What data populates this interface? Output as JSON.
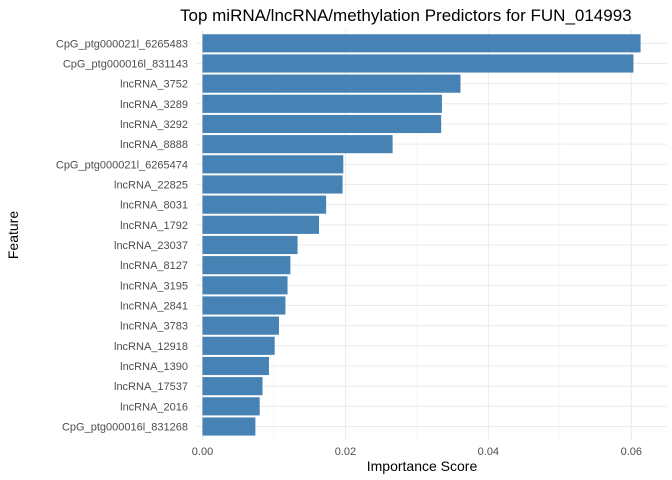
{
  "chart_data": {
    "type": "bar",
    "orientation": "horizontal",
    "title": "Top miRNA/lncRNA/methylation Predictors for FUN_014993",
    "xlabel": "Importance Score",
    "ylabel": "Feature",
    "xlim": [
      0,
      0.064
    ],
    "x_ticks": [
      0.0,
      0.02,
      0.04,
      0.06
    ],
    "x_tick_labels": [
      "0.00",
      "0.02",
      "0.04",
      "0.06"
    ],
    "grid": true,
    "bar_color": "#4682B4",
    "categories": [
      "CpG_ptg000021l_6265483",
      "CpG_ptg000016l_831143",
      "lncRNA_3752",
      "lncRNA_3289",
      "lncRNA_3292",
      "lncRNA_8888",
      "CpG_ptg000021l_6265474",
      "lncRNA_22825",
      "lncRNA_8031",
      "lncRNA_1792",
      "lncRNA_23037",
      "lncRNA_8127",
      "lncRNA_3195",
      "lncRNA_2841",
      "lncRNA_3783",
      "lncRNA_12918",
      "lncRNA_1390",
      "lncRNA_17537",
      "lncRNA_2016",
      "CpG_ptg000016l_831268"
    ],
    "values": [
      0.0613,
      0.0603,
      0.0361,
      0.0335,
      0.0334,
      0.0266,
      0.0197,
      0.0196,
      0.0173,
      0.0163,
      0.0133,
      0.0123,
      0.0119,
      0.0116,
      0.0107,
      0.0101,
      0.0093,
      0.0084,
      0.008,
      0.0074
    ]
  }
}
